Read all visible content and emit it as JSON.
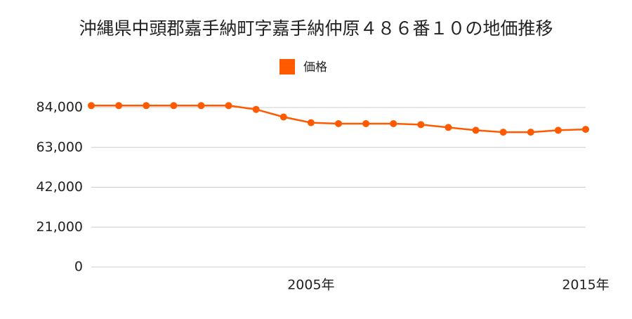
{
  "chart_data": {
    "type": "line",
    "title": "沖縄県中頭郡嘉手納町字嘉手納仲原４８６番１０の地価推移",
    "x": [
      1997,
      1998,
      1999,
      2000,
      2001,
      2002,
      2003,
      2004,
      2005,
      2006,
      2007,
      2008,
      2009,
      2010,
      2011,
      2012,
      2013,
      2014,
      2015
    ],
    "series": [
      {
        "name": "価格",
        "color": "#ff5a00",
        "values": [
          85000,
          85000,
          85000,
          85000,
          85000,
          85000,
          83000,
          79000,
          76000,
          75500,
          75500,
          75500,
          75000,
          73500,
          72000,
          71000,
          71000,
          72000,
          72500
        ]
      }
    ],
    "xlim": [
      1997,
      2015
    ],
    "xticks": [
      {
        "value": 2005,
        "label": "2005年"
      },
      {
        "value": 2015,
        "label": "2015年"
      }
    ],
    "ylim": [
      0,
      84000
    ],
    "yticks": [
      0,
      {
        "value": 21000,
        "label": "21,000"
      },
      {
        "value": 42000,
        "label": "42,000"
      },
      {
        "value": 63000,
        "label": "63,000"
      },
      {
        "value": 84000,
        "label": "84,000"
      }
    ],
    "grid": true
  }
}
